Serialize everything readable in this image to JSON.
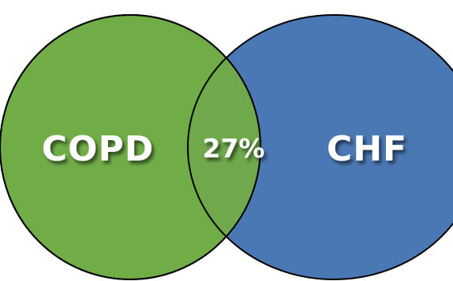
{
  "diagram": {
    "type": "venn",
    "sets": [
      {
        "label": "COPD",
        "color": "#70ad47"
      },
      {
        "label": "CHF",
        "color": "#4a78b4"
      }
    ],
    "intersection": {
      "label": "27%",
      "color": "#6fa94b"
    },
    "outline_color": "#000000"
  }
}
